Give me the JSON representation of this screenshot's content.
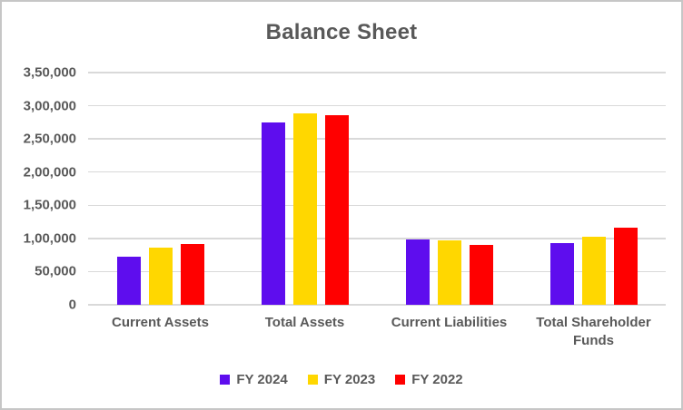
{
  "window": {
    "background_color": "#ffffff",
    "border_color": "#c6c6c6"
  },
  "chart_data": {
    "type": "bar",
    "title": "Balance Sheet",
    "categories": [
      "Current Assets",
      "Total Assets",
      "Current Liabilities",
      "Total Shareholder Funds"
    ],
    "series": [
      {
        "name": "FY 2024",
        "color": "#5e0dee",
        "values": [
          72000,
          275000,
          98000,
          93000
        ]
      },
      {
        "name": "FY 2023",
        "color": "#ffd700",
        "values": [
          86000,
          288000,
          97000,
          103000
        ]
      },
      {
        "name": "FY 2022",
        "color": "#ff0000",
        "values": [
          92000,
          286000,
          90000,
          116000
        ]
      }
    ],
    "ylim": [
      0,
      350000
    ],
    "y_ticks": [
      {
        "value": 0,
        "label": "0"
      },
      {
        "value": 50000,
        "label": "50,000"
      },
      {
        "value": 100000,
        "label": "1,00,000"
      },
      {
        "value": 150000,
        "label": "1,50,000"
      },
      {
        "value": 200000,
        "label": "2,00,000"
      },
      {
        "value": 250000,
        "label": "2,50,000"
      },
      {
        "value": 300000,
        "label": "3,00,000"
      },
      {
        "value": 350000,
        "label": "3,50,000"
      }
    ],
    "grid": true,
    "gridline_color": "#d9d9d9",
    "text_color": "#595959",
    "legend_position": "bottom"
  }
}
